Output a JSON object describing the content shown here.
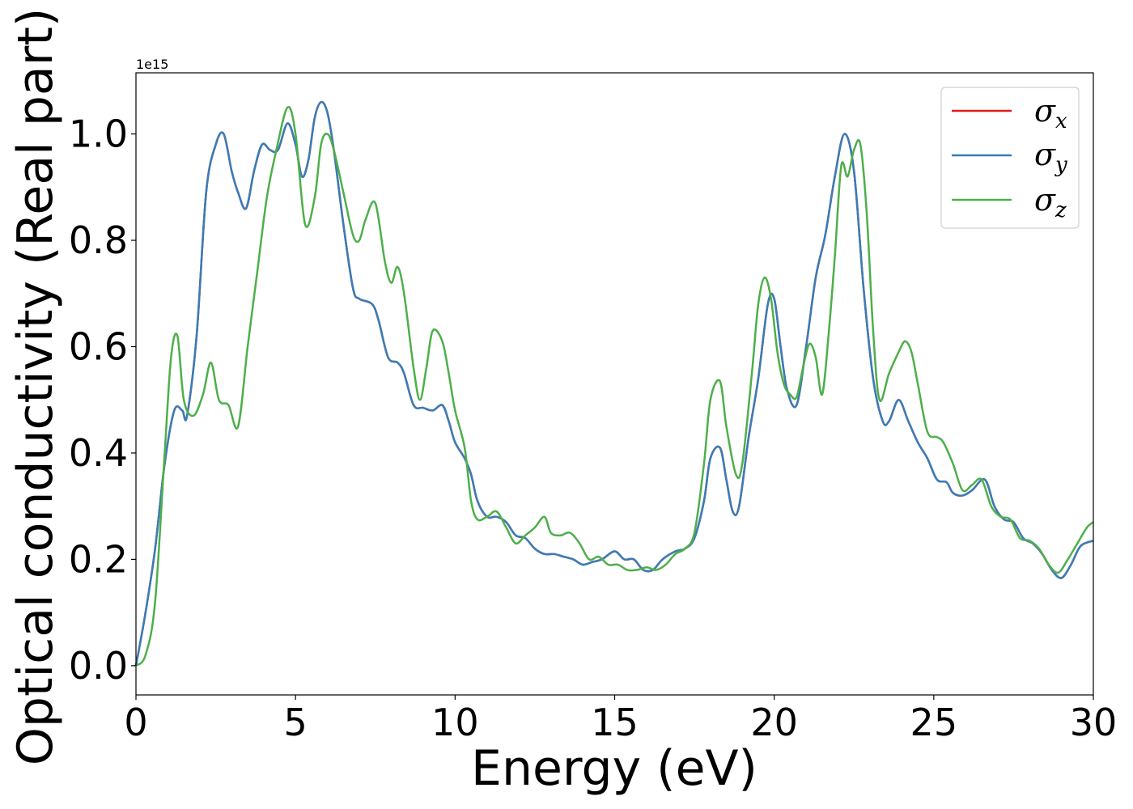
{
  "chart_data": {
    "type": "line",
    "title": "",
    "xlabel": "Energy (eV)",
    "ylabel": "Optical conductivity (Real part)",
    "y_offset_label": "1e15",
    "xlim": [
      0,
      30
    ],
    "ylim": [
      -0.055,
      1.115
    ],
    "x_ticks": [
      0,
      5,
      10,
      15,
      20,
      25,
      30
    ],
    "x_tick_labels": [
      "0",
      "5",
      "10",
      "15",
      "20",
      "25",
      "30"
    ],
    "y_ticks": [
      0.0,
      0.2,
      0.4,
      0.6,
      0.8,
      1.0
    ],
    "y_tick_labels": [
      "0.0",
      "0.2",
      "0.4",
      "0.6",
      "0.8",
      "1.0"
    ],
    "grid": false,
    "legend_position": "top-right",
    "series": [
      {
        "name": "σx",
        "symbol": "σ",
        "subscript": "x",
        "color": "#e41a1c",
        "x": [
          0,
          0.3,
          0.6,
          0.9,
          1.2,
          1.45,
          1.6,
          1.9,
          2.2,
          2.5,
          2.75,
          3.0,
          3.2,
          3.45,
          3.7,
          3.95,
          4.2,
          4.45,
          4.75,
          5.0,
          5.2,
          5.4,
          5.6,
          5.8,
          6.0,
          6.2,
          6.5,
          6.8,
          7.0,
          7.4,
          7.6,
          7.9,
          8.2,
          8.4,
          8.7,
          9.0,
          9.3,
          9.6,
          9.8,
          10.0,
          10.3,
          10.5,
          10.7,
          11.0,
          11.3,
          11.6,
          11.9,
          12.2,
          12.5,
          12.8,
          13.1,
          13.4,
          13.7,
          14.0,
          14.3,
          14.6,
          15.0,
          15.3,
          15.6,
          15.9,
          16.2,
          16.5,
          16.9,
          17.2,
          17.5,
          17.8,
          18.0,
          18.3,
          18.5,
          18.7,
          18.9,
          19.2,
          19.5,
          19.8,
          20.0,
          20.2,
          20.4,
          20.7,
          21.0,
          21.3,
          21.6,
          21.9,
          22.2,
          22.5,
          22.8,
          23.1,
          23.4,
          23.6,
          23.9,
          24.2,
          24.5,
          24.8,
          25.1,
          25.4,
          25.6,
          25.9,
          26.2,
          26.6,
          26.9,
          27.2,
          27.5,
          27.8,
          28.1,
          28.4,
          28.7,
          29.0,
          29.3,
          29.6,
          30.0
        ],
        "y": [
          0.0,
          0.1,
          0.22,
          0.38,
          0.48,
          0.48,
          0.47,
          0.62,
          0.89,
          0.98,
          1.0,
          0.93,
          0.89,
          0.86,
          0.93,
          0.98,
          0.97,
          0.97,
          1.02,
          0.98,
          0.92,
          0.95,
          1.03,
          1.06,
          1.04,
          0.97,
          0.83,
          0.71,
          0.69,
          0.68,
          0.65,
          0.58,
          0.57,
          0.55,
          0.49,
          0.485,
          0.48,
          0.49,
          0.46,
          0.42,
          0.39,
          0.36,
          0.31,
          0.28,
          0.28,
          0.27,
          0.245,
          0.24,
          0.22,
          0.21,
          0.21,
          0.205,
          0.2,
          0.19,
          0.195,
          0.2,
          0.215,
          0.2,
          0.2,
          0.18,
          0.18,
          0.2,
          0.215,
          0.22,
          0.24,
          0.31,
          0.39,
          0.41,
          0.35,
          0.29,
          0.3,
          0.43,
          0.54,
          0.68,
          0.69,
          0.6,
          0.52,
          0.49,
          0.6,
          0.73,
          0.81,
          0.92,
          1.0,
          0.93,
          0.71,
          0.54,
          0.46,
          0.46,
          0.5,
          0.46,
          0.42,
          0.39,
          0.35,
          0.345,
          0.325,
          0.32,
          0.33,
          0.35,
          0.3,
          0.275,
          0.27,
          0.24,
          0.23,
          0.21,
          0.18,
          0.165,
          0.19,
          0.225,
          0.235
        ]
      },
      {
        "name": "σy",
        "symbol": "σ",
        "subscript": "y",
        "color": "#377eb8",
        "x": [
          0,
          0.3,
          0.6,
          0.9,
          1.2,
          1.45,
          1.6,
          1.9,
          2.2,
          2.5,
          2.75,
          3.0,
          3.2,
          3.45,
          3.7,
          3.95,
          4.2,
          4.45,
          4.75,
          5.0,
          5.2,
          5.4,
          5.6,
          5.8,
          6.0,
          6.2,
          6.5,
          6.8,
          7.0,
          7.4,
          7.6,
          7.9,
          8.2,
          8.4,
          8.7,
          9.0,
          9.3,
          9.6,
          9.8,
          10.0,
          10.3,
          10.5,
          10.7,
          11.0,
          11.3,
          11.6,
          11.9,
          12.2,
          12.5,
          12.8,
          13.1,
          13.4,
          13.7,
          14.0,
          14.3,
          14.6,
          15.0,
          15.3,
          15.6,
          15.9,
          16.2,
          16.5,
          16.9,
          17.2,
          17.5,
          17.8,
          18.0,
          18.3,
          18.5,
          18.7,
          18.9,
          19.2,
          19.5,
          19.8,
          20.0,
          20.2,
          20.4,
          20.7,
          21.0,
          21.3,
          21.6,
          21.9,
          22.2,
          22.5,
          22.8,
          23.1,
          23.4,
          23.6,
          23.9,
          24.2,
          24.5,
          24.8,
          25.1,
          25.4,
          25.6,
          25.9,
          26.2,
          26.6,
          26.9,
          27.2,
          27.5,
          27.8,
          28.1,
          28.4,
          28.7,
          29.0,
          29.3,
          29.6,
          30.0
        ],
        "y": [
          0.0,
          0.1,
          0.22,
          0.38,
          0.48,
          0.48,
          0.47,
          0.62,
          0.89,
          0.98,
          1.0,
          0.93,
          0.89,
          0.86,
          0.93,
          0.98,
          0.97,
          0.97,
          1.02,
          0.98,
          0.92,
          0.95,
          1.03,
          1.06,
          1.04,
          0.97,
          0.83,
          0.71,
          0.69,
          0.68,
          0.65,
          0.58,
          0.57,
          0.55,
          0.49,
          0.485,
          0.48,
          0.49,
          0.46,
          0.42,
          0.39,
          0.36,
          0.31,
          0.28,
          0.28,
          0.27,
          0.245,
          0.24,
          0.22,
          0.21,
          0.21,
          0.205,
          0.2,
          0.19,
          0.195,
          0.2,
          0.215,
          0.2,
          0.2,
          0.18,
          0.18,
          0.2,
          0.215,
          0.22,
          0.24,
          0.31,
          0.39,
          0.41,
          0.35,
          0.29,
          0.3,
          0.43,
          0.54,
          0.68,
          0.69,
          0.6,
          0.52,
          0.49,
          0.6,
          0.73,
          0.81,
          0.92,
          1.0,
          0.93,
          0.71,
          0.54,
          0.46,
          0.46,
          0.5,
          0.46,
          0.42,
          0.39,
          0.35,
          0.345,
          0.325,
          0.32,
          0.33,
          0.35,
          0.3,
          0.275,
          0.27,
          0.24,
          0.23,
          0.21,
          0.18,
          0.165,
          0.19,
          0.225,
          0.235
        ]
      },
      {
        "name": "σz",
        "symbol": "σ",
        "subscript": "z",
        "color": "#4daf4a",
        "x": [
          0,
          0.3,
          0.6,
          0.9,
          1.1,
          1.3,
          1.5,
          1.8,
          2.1,
          2.35,
          2.6,
          2.9,
          3.2,
          3.5,
          3.8,
          4.1,
          4.4,
          4.75,
          5.0,
          5.3,
          5.6,
          5.8,
          6.0,
          6.2,
          6.5,
          6.8,
          7.0,
          7.2,
          7.5,
          7.8,
          8.0,
          8.2,
          8.4,
          8.7,
          8.9,
          9.1,
          9.3,
          9.6,
          9.8,
          10.0,
          10.3,
          10.5,
          10.7,
          11.0,
          11.3,
          11.6,
          11.9,
          12.2,
          12.5,
          12.8,
          13.0,
          13.3,
          13.6,
          13.9,
          14.2,
          14.5,
          14.8,
          15.1,
          15.4,
          15.7,
          16.0,
          16.3,
          16.6,
          16.9,
          17.2,
          17.5,
          17.8,
          18.0,
          18.3,
          18.5,
          18.8,
          19.0,
          19.3,
          19.5,
          19.7,
          19.9,
          20.1,
          20.3,
          20.5,
          20.7,
          20.9,
          21.1,
          21.3,
          21.5,
          21.7,
          21.9,
          22.1,
          22.3,
          22.5,
          22.7,
          22.9,
          23.1,
          23.3,
          23.6,
          23.9,
          24.1,
          24.3,
          24.5,
          24.8,
          25.1,
          25.3,
          25.6,
          25.9,
          26.2,
          26.5,
          26.8,
          27.1,
          27.4,
          27.7,
          28.0,
          28.3,
          28.6,
          28.9,
          29.2,
          29.5,
          29.8,
          30.0
        ],
        "y": [
          0.0,
          0.02,
          0.12,
          0.4,
          0.58,
          0.62,
          0.5,
          0.47,
          0.51,
          0.57,
          0.5,
          0.49,
          0.45,
          0.6,
          0.74,
          0.88,
          0.97,
          1.05,
          1.0,
          0.83,
          0.88,
          0.98,
          1.0,
          0.97,
          0.89,
          0.81,
          0.8,
          0.84,
          0.87,
          0.76,
          0.72,
          0.75,
          0.7,
          0.56,
          0.5,
          0.56,
          0.63,
          0.61,
          0.55,
          0.48,
          0.41,
          0.31,
          0.275,
          0.28,
          0.29,
          0.26,
          0.23,
          0.245,
          0.26,
          0.28,
          0.25,
          0.245,
          0.25,
          0.23,
          0.2,
          0.205,
          0.19,
          0.19,
          0.18,
          0.18,
          0.185,
          0.18,
          0.19,
          0.21,
          0.22,
          0.25,
          0.38,
          0.5,
          0.535,
          0.45,
          0.36,
          0.38,
          0.55,
          0.68,
          0.73,
          0.69,
          0.59,
          0.53,
          0.51,
          0.505,
          0.56,
          0.605,
          0.58,
          0.51,
          0.62,
          0.77,
          0.94,
          0.92,
          0.97,
          0.98,
          0.85,
          0.63,
          0.5,
          0.55,
          0.59,
          0.61,
          0.59,
          0.53,
          0.44,
          0.43,
          0.42,
          0.38,
          0.33,
          0.34,
          0.35,
          0.3,
          0.28,
          0.275,
          0.24,
          0.235,
          0.22,
          0.19,
          0.175,
          0.2,
          0.23,
          0.26,
          0.27
        ]
      }
    ]
  }
}
